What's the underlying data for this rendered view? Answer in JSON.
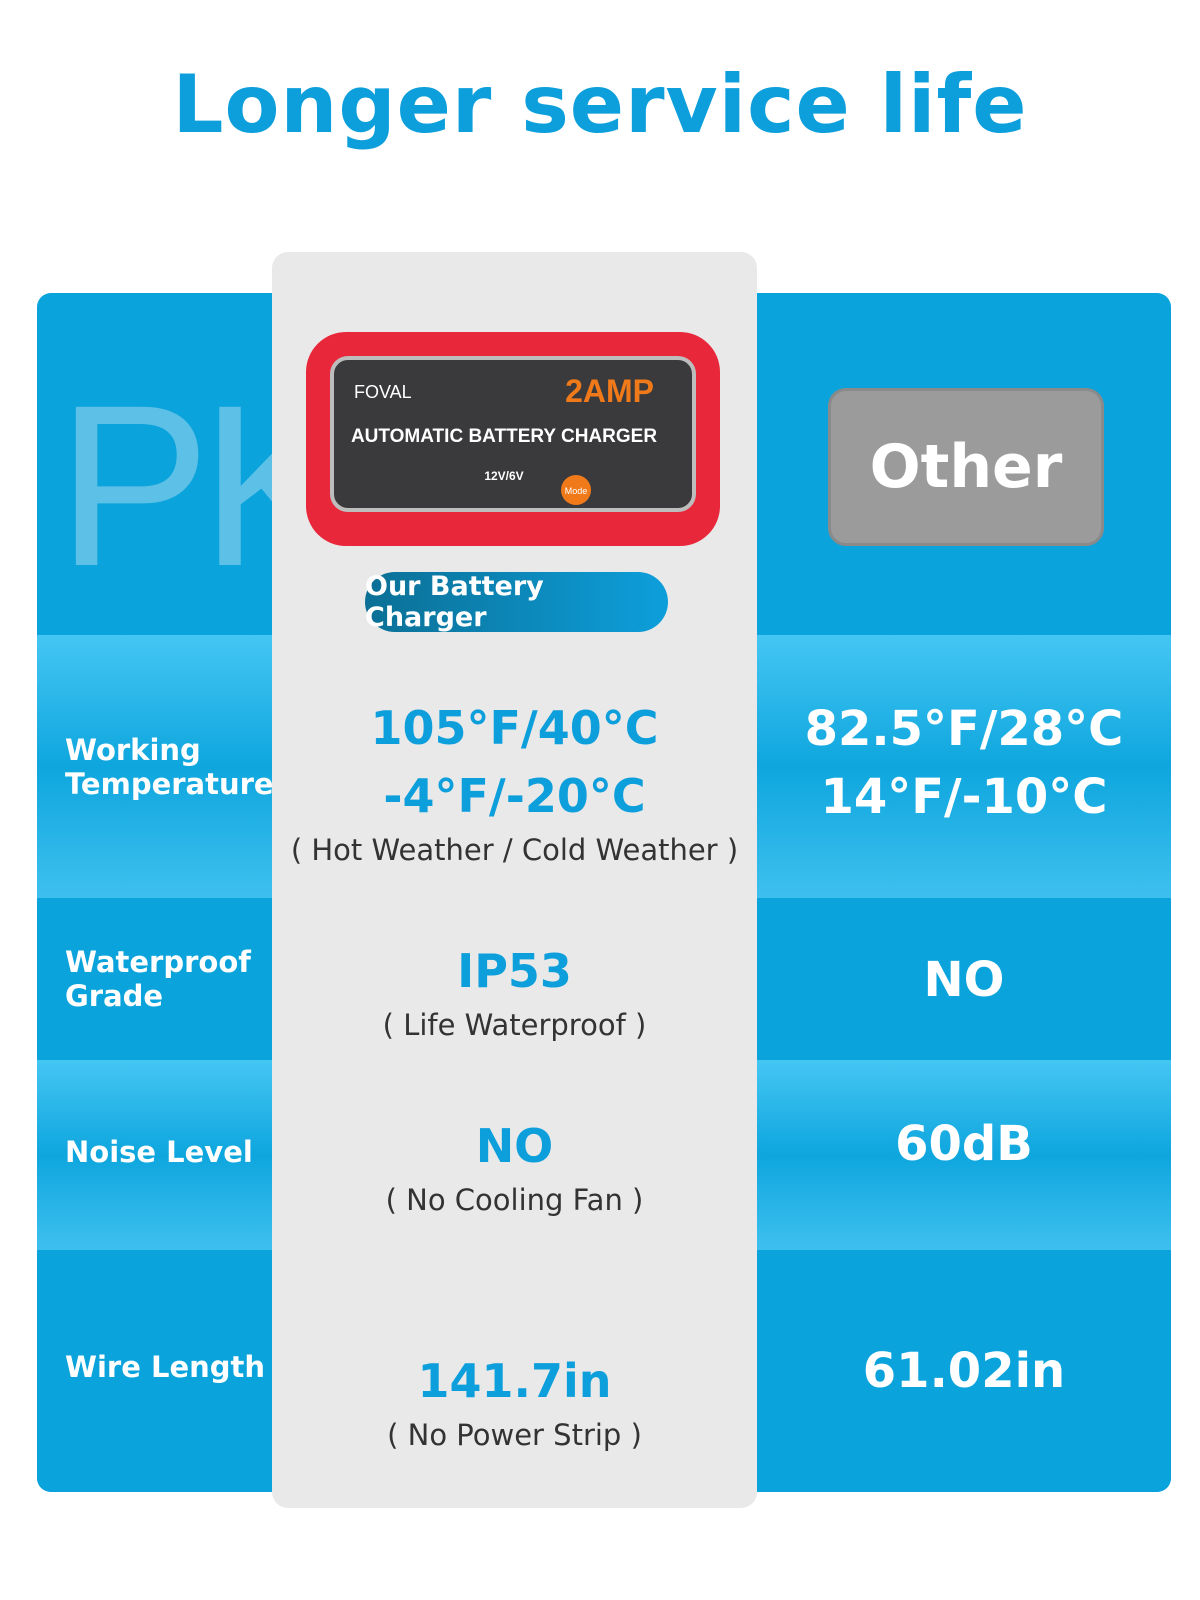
{
  "title": "Longer service life",
  "watermark": "PK",
  "product": {
    "brand": "FOVAL",
    "amp": "2AMP",
    "name": "AUTOMATIC BATTERY CHARGER",
    "voltage": "12V/6V",
    "mode": "Mode",
    "badge": "Our Battery Charger"
  },
  "competitor": {
    "label": "Other"
  },
  "rows": [
    {
      "label": "Working Temperature",
      "ours": [
        "105°F/40°C",
        "-4°F/-20°C"
      ],
      "ours_note": "( Hot Weather / Cold Weather )",
      "other": [
        "82.5°F/28°C",
        "14°F/-10°C"
      ]
    },
    {
      "label": "Waterproof Grade",
      "ours": [
        "IP53"
      ],
      "ours_note": "( Life Waterproof )",
      "other": [
        "NO"
      ]
    },
    {
      "label": "Noise Level",
      "ours": [
        "NO"
      ],
      "ours_note": "( No Cooling Fan )",
      "other": [
        "60dB"
      ]
    },
    {
      "label": "Wire Length",
      "ours": [
        "141.7in"
      ],
      "ours_note": "( No Power Strip )",
      "other": [
        "61.02in"
      ]
    }
  ],
  "colors": {
    "accent": "#0d9fdb",
    "card": "#0aa3dc",
    "panel": "#e9e9e9",
    "charger_red": "#e8283a",
    "amp_orange": "#f07a1a"
  }
}
